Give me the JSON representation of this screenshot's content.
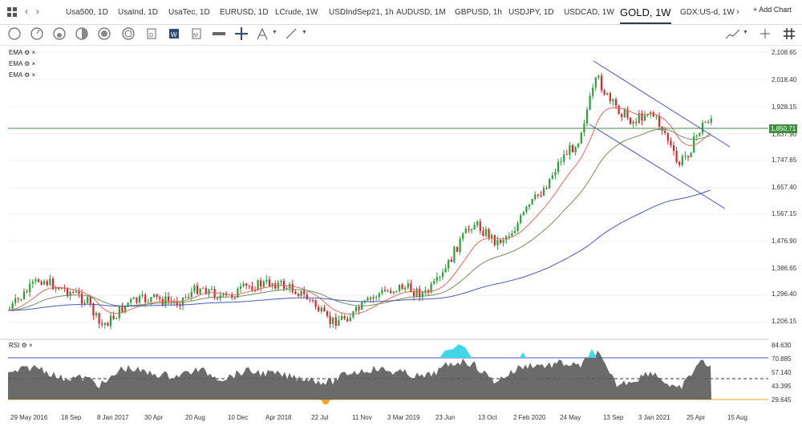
{
  "tabs": [
    "Usa500, 1D",
    "UsaInd, 1D",
    "UsaTec, 1D",
    "EURUSD, 1D",
    "LCrude, 1W",
    "USDIndSep21, 1h",
    "AUDUSD, 1M",
    "GBPUSD, 1h",
    "USDJPY, 1D",
    "USDCAD, 1W",
    "GOLD, 1W",
    "GDX:US-d, 1W"
  ],
  "active_tab": "GOLD, 1W",
  "add_chart": "+ Add Chart",
  "indicators": {
    "ema1": "EMA",
    "ema2": "EMA",
    "ema3": "EMA",
    "rsi": "RSI"
  },
  "price_axis": [
    "2,108.65",
    "2,018.40",
    "1,928.15",
    "1,837.90",
    "1,747.65",
    "1,657.40",
    "1,567.15",
    "1,476.90",
    "1,386.65",
    "1,296.40",
    "1,206.15"
  ],
  "current_price": "1,850.71",
  "rsi_axis": [
    "84.630",
    "70.885",
    "57.140",
    "43.395",
    "29.645"
  ],
  "x_axis": [
    "29 May 2016",
    "18 Sep",
    "8 Jan 2017",
    "30 Apr",
    "20 Aug",
    "10 Dec",
    "Apr 2018",
    "22 Jul",
    "11 Nov",
    "3 Mar 2019",
    "23 Jun",
    "13 Oct",
    "2 Feb 2020",
    "24 May",
    "13 Sep",
    "3 Jan 2021",
    "25 Apr",
    "15 Aug"
  ],
  "colors": {
    "up": "#2e9e3a",
    "down": "#d8262e",
    "ema_fast": "#e8685a",
    "ema_mid": "#6f8f5a",
    "ema_slow": "#4b57b8",
    "channel": "#4a55c8",
    "price_line": "#3f8f3f",
    "rsi_fill": "#5b5b5b",
    "rsi_overbought": "#3fd6e8",
    "rsi_oversold": "#f0a623"
  }
}
